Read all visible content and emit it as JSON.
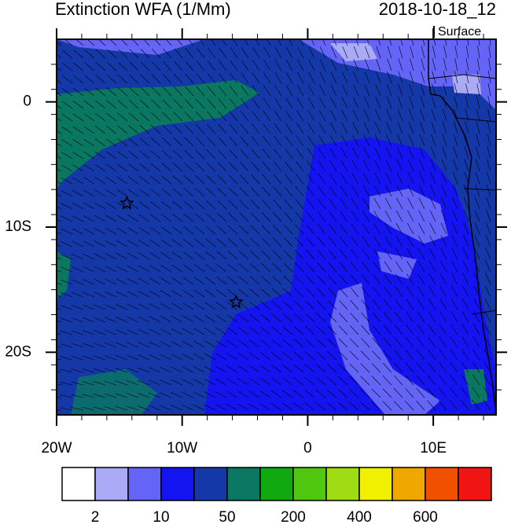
{
  "header": {
    "title": "Extinction WFA (1/Mm)",
    "time": "2018-10-18_12",
    "level": "Surface"
  },
  "map": {
    "lonlim": [
      -20,
      15
    ],
    "latlim": [
      -25,
      5
    ],
    "lonticks": [
      {
        "value": -20,
        "label": "20W"
      },
      {
        "value": -10,
        "label": "10W"
      },
      0,
      {
        "value": 10,
        "label": "10E"
      }
    ],
    "latticks": [
      0,
      {
        "value": -10,
        "label": "10S"
      },
      {
        "value": -20,
        "label": "20S"
      }
    ],
    "markers": [
      {
        "lon": -14.4,
        "lat": -8.1
      },
      {
        "lon": -5.7,
        "lat": -16
      }
    ]
  },
  "colorbar": {
    "colors": [
      "#ffffff",
      "#aaaaf6",
      "#6464f6",
      "#1414f0",
      "#1438a8",
      "#0a7860",
      "#10aa10",
      "#50c810",
      "#a0dc14",
      "#f0f000",
      "#f0a800",
      "#f05000",
      "#f01414"
    ],
    "labels": [
      2,
      10,
      50,
      200,
      400,
      600
    ]
  }
}
